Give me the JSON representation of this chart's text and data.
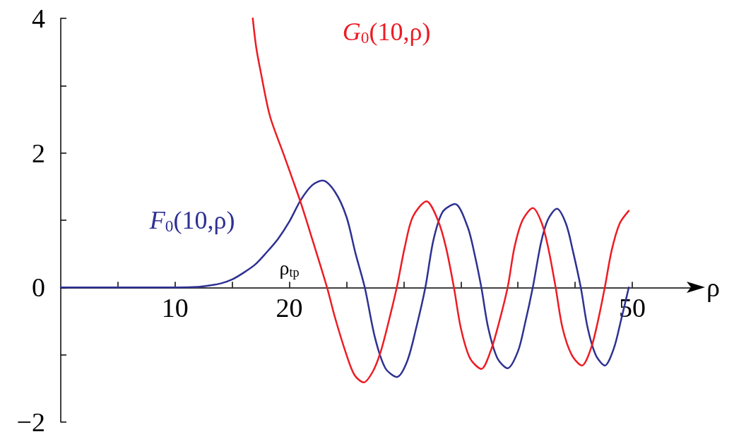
{
  "chart_data": {
    "type": "line",
    "xlabel": "ρ",
    "xlim": [
      0,
      56
    ],
    "ylim": [
      -2,
      4
    ],
    "xticks": [
      {
        "value": 5,
        "label": null
      },
      10,
      {
        "value": 15,
        "label": null
      },
      20,
      {
        "value": 25,
        "label": null
      },
      {
        "value": 30,
        "label": null
      },
      {
        "value": 35,
        "label": null
      },
      {
        "value": 40,
        "label": null
      },
      {
        "value": 45,
        "label": null
      },
      50
    ],
    "yticks": [
      {
        "value": -2,
        "label": "−2"
      },
      {
        "value": -1,
        "label": null
      },
      0,
      {
        "value": 1,
        "label": null
      },
      2,
      {
        "value": 3,
        "label": null
      },
      4
    ],
    "marker": "none",
    "line_style": "solid",
    "annotations": [
      "ρ$_{tp}$"
    ],
    "series": [
      {
        "name": "F$_{0}$(10,ρ)",
        "color": "#2e3192",
        "x": [
          0,
          5,
          10,
          12,
          13,
          14,
          15,
          16,
          17,
          18,
          19,
          20,
          21,
          22,
          22.9,
          24,
          25,
          25.8,
          26.6,
          27.5,
          28.4,
          29.4,
          30.3,
          31.1,
          31.9,
          32.6,
          33.4,
          34.5,
          35.6,
          36.2,
          36.8,
          37.4,
          38.2,
          39.1,
          40.0,
          40.6,
          41.3,
          42.0,
          42.6,
          43.4,
          44.2,
          44.8,
          45.5,
          46.1,
          46.8,
          47.6,
          48.4,
          49.0,
          49.7
        ],
        "values": [
          0,
          0,
          0,
          0.01,
          0.03,
          0.06,
          0.12,
          0.22,
          0.34,
          0.52,
          0.72,
          0.98,
          1.3,
          1.52,
          1.59,
          1.42,
          1.05,
          0.5,
          0,
          -0.75,
          -1.2,
          -1.33,
          -1.1,
          -0.6,
          0,
          0.7,
          1.12,
          1.24,
          0.9,
          0.5,
          0,
          -0.6,
          -1.05,
          -1.2,
          -0.95,
          -0.55,
          0,
          0.65,
          1.0,
          1.17,
          0.95,
          0.55,
          0,
          -0.6,
          -1.0,
          -1.16,
          -0.9,
          -0.5,
          0
        ]
      },
      {
        "name": "G$_{0}$(10,ρ)",
        "color": "#ed1c24",
        "x": [
          16.8,
          17.1,
          17.5,
          18.3,
          19.5,
          20.3,
          21,
          22,
          23.3,
          24,
          25,
          25.7,
          26.5,
          27.3,
          28,
          28.7,
          29.4,
          30.1,
          30.8,
          32.0,
          33.0,
          33.7,
          34.4,
          35.0,
          35.8,
          36.8,
          37.6,
          38.3,
          39.1,
          39.7,
          40.4,
          41.3,
          42.1,
          42.7,
          43.3,
          43.9,
          44.7,
          45.6,
          46.4,
          47.0,
          47.6,
          48.2,
          48.9,
          49.7
        ],
        "values": [
          4.0,
          3.57,
          3.2,
          2.55,
          1.98,
          1.6,
          1.26,
          0.72,
          0,
          -0.45,
          -1.0,
          -1.3,
          -1.41,
          -1.25,
          -0.95,
          -0.5,
          0,
          0.6,
          1.05,
          1.28,
          1.0,
          0.6,
          0,
          -0.6,
          -1.05,
          -1.21,
          -0.95,
          -0.55,
          0,
          0.6,
          1.0,
          1.18,
          0.95,
          0.55,
          0,
          -0.6,
          -1.0,
          -1.16,
          -0.9,
          -0.5,
          0,
          0.55,
          0.95,
          1.14
        ]
      }
    ]
  }
}
